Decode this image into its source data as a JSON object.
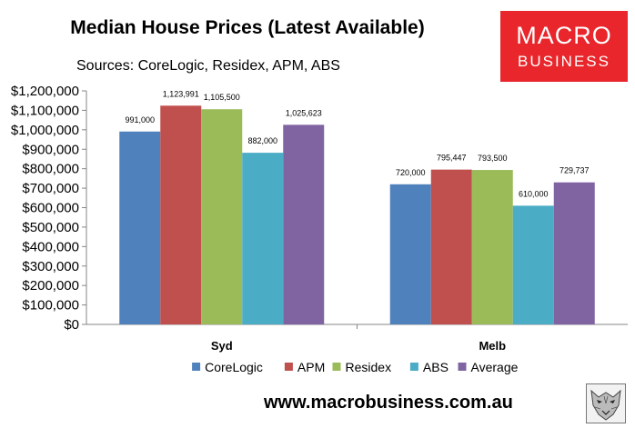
{
  "chart_data": {
    "type": "bar",
    "title": "Median House Prices (Latest Available)",
    "subtitle": "Sources: CoreLogic, Residex, APM, ABS",
    "categories": [
      "Syd",
      "Melb"
    ],
    "series": [
      {
        "name": "CoreLogic",
        "color": "#4f81bd",
        "values": [
          991000,
          720000
        ],
        "labels": [
          "991,000",
          "720,000"
        ]
      },
      {
        "name": "APM",
        "color": "#c0504d",
        "values": [
          1123991,
          795447
        ],
        "labels": [
          "1,123,991",
          "795,447"
        ]
      },
      {
        "name": "Residex",
        "color": "#9bbb59",
        "values": [
          1105500,
          793500
        ],
        "labels": [
          "1,105,500",
          "793,500"
        ]
      },
      {
        "name": "ABS",
        "color": "#4bacc6",
        "values": [
          882000,
          610000
        ],
        "labels": [
          "882,000",
          "610,000"
        ]
      },
      {
        "name": "Average",
        "color": "#8064a2",
        "values": [
          1025623,
          729737
        ],
        "labels": [
          "1,025,623",
          "729,737"
        ]
      }
    ],
    "ylim": [
      0,
      1200000
    ],
    "yticks": [
      0,
      100000,
      200000,
      300000,
      400000,
      500000,
      600000,
      700000,
      800000,
      900000,
      1000000,
      1100000,
      1200000
    ],
    "ytick_labels": [
      "$0",
      "$100,000",
      "$200,000",
      "$300,000",
      "$400,000",
      "$500,000",
      "$600,000",
      "$700,000",
      "$800,000",
      "$900,000",
      "$1,000,000",
      "$1,100,000",
      "$1,200,000"
    ],
    "grid": false,
    "legend_position": "bottom"
  },
  "logo": {
    "line1": "MACRO",
    "line2": "BUSINESS",
    "color": "#e8262b"
  },
  "footer": {
    "url": "www.macrobusiness.com.au"
  },
  "icons": {
    "watermark": "wolf-icon"
  }
}
